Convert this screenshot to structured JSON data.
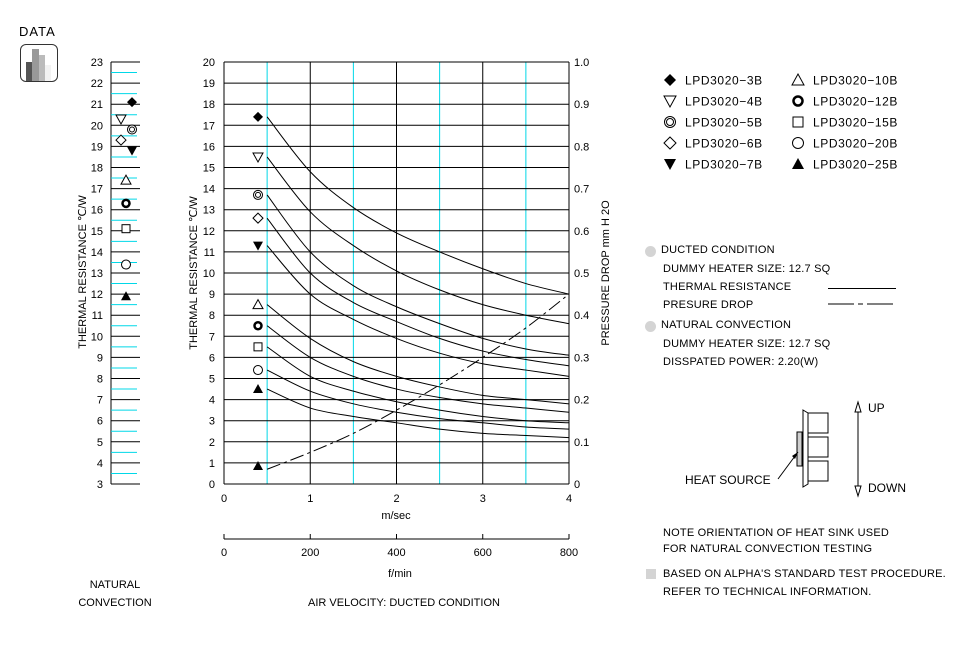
{
  "header": {
    "data_label": "DATA"
  },
  "natural_convection_scale": {
    "ylabel": "THERMAL  RESISTANCE   ℃/W",
    "ticks": [
      3,
      4,
      5,
      6,
      7,
      8,
      9,
      10,
      11,
      12,
      13,
      14,
      15,
      16,
      17,
      18,
      19,
      20,
      21,
      22,
      23
    ],
    "caption_line1": "NATURAL",
    "caption_line2": "CONVECTION"
  },
  "main_chart": {
    "ylabel": "THERMAL  RESISTANCE   ℃/W",
    "y2label": "PRESSURE  DROP    mm H 2O",
    "xlabel": "m/sec",
    "x2label": "f/min",
    "caption": "AIR VELOCITY:  DUCTED CONDITION"
  },
  "legend": {
    "items": [
      {
        "label": "LPD3020−3B",
        "marker": "filled-diamond"
      },
      {
        "label": "LPD3020−4B",
        "marker": "open-down-triangle"
      },
      {
        "label": "LPD3020−5B",
        "marker": "double-circle"
      },
      {
        "label": "LPD3020−6B",
        "marker": "open-diamond"
      },
      {
        "label": "LPD3020−7B",
        "marker": "filled-down-triangle"
      },
      {
        "label": "LPD3020−10B",
        "marker": "open-up-triangle"
      },
      {
        "label": "LPD3020−12B",
        "marker": "bold-ring"
      },
      {
        "label": "LPD3020−15B",
        "marker": "open-square"
      },
      {
        "label": "LPD3020−20B",
        "marker": "open-circle"
      },
      {
        "label": "LPD3020−25B",
        "marker": "filled-up-triangle"
      }
    ]
  },
  "conditions": {
    "ducted_title": "DUCTED CONDITION",
    "ducted_heater": "DUMMY HEATER SIZE: 12.7 SQ",
    "thermal_resistance": "THERMAL RESISTANCE",
    "pressure_drop": "PRESURE DROP",
    "natural_title": "NATURAL CONVECTION",
    "natural_heater": "DUMMY HEATER SIZE: 12.7 SQ",
    "dissipated_power": "DISSPATED POWER:    2.20(W)"
  },
  "orientation": {
    "heat_source": "HEAT SOURCE",
    "up": "UP",
    "down": "DOWN",
    "note_line1": "NOTE ORIENTATION OF HEAT SINK USED",
    "note_line2": "FOR NATURAL CONVECTION TESTING",
    "ref_line1": "BASED ON ALPHA'S STANDARD TEST PROCEDURE.",
    "ref_line2": "REFER TO TECHNICAL INFORMATION."
  },
  "chart_data": [
    {
      "type": "line",
      "title": "Thermal Resistance & Pressure Drop vs Air Velocity (Ducted Condition)",
      "xlabel": "m/sec",
      "x2label": "f/min",
      "ylabel": "THERMAL RESISTANCE ℃/W",
      "y2label": "PRESSURE DROP mm H2O",
      "xlim": [
        0,
        4
      ],
      "x2lim": [
        0,
        800
      ],
      "ylim": [
        0,
        20
      ],
      "y2lim": [
        0,
        1.0
      ],
      "xticks": [
        0,
        1,
        2,
        3,
        4
      ],
      "x2ticks": [
        0,
        200,
        400,
        600,
        800
      ],
      "yticks": [
        0,
        1,
        2,
        3,
        4,
        5,
        6,
        7,
        8,
        9,
        10,
        11,
        12,
        13,
        14,
        15,
        16,
        17,
        18,
        19,
        20
      ],
      "y2ticks": [
        0,
        0.1,
        0.2,
        0.3,
        0.4,
        0.5,
        0.6,
        0.7,
        0.8,
        0.9,
        1.0
      ],
      "grid": true,
      "legend_position": "right",
      "x": [
        0.5,
        1.0,
        1.5,
        2.0,
        2.5,
        3.0,
        3.5,
        4.0
      ],
      "series": [
        {
          "name": "LPD3020-3B",
          "values": [
            17.4,
            14.8,
            13.1,
            11.9,
            11.0,
            10.2,
            9.5,
            9.0
          ]
        },
        {
          "name": "LPD3020-4B",
          "values": [
            15.5,
            12.9,
            11.3,
            10.1,
            9.2,
            8.5,
            8.0,
            7.6
          ]
        },
        {
          "name": "LPD3020-5B",
          "values": [
            13.7,
            11.0,
            9.4,
            8.4,
            7.6,
            6.9,
            6.4,
            6.1
          ]
        },
        {
          "name": "LPD3020-6B",
          "values": [
            12.6,
            10.0,
            8.6,
            7.7,
            6.9,
            6.3,
            5.9,
            5.6
          ]
        },
        {
          "name": "LPD3020-7B",
          "values": [
            11.3,
            9.0,
            7.8,
            6.9,
            6.2,
            5.7,
            5.4,
            5.1
          ]
        },
        {
          "name": "LPD3020-10B",
          "values": [
            8.5,
            6.9,
            5.8,
            5.1,
            4.6,
            4.2,
            4.0,
            3.8
          ]
        },
        {
          "name": "LPD3020-12B",
          "values": [
            7.5,
            6.0,
            5.1,
            4.5,
            4.1,
            3.8,
            3.6,
            3.4
          ]
        },
        {
          "name": "LPD3020-15B",
          "values": [
            6.5,
            5.1,
            4.4,
            3.9,
            3.5,
            3.2,
            3.0,
            2.9
          ]
        },
        {
          "name": "LPD3020-20B",
          "values": [
            5.4,
            4.4,
            3.8,
            3.4,
            3.1,
            2.9,
            2.7,
            2.6
          ]
        },
        {
          "name": "LPD3020-25B",
          "values": [
            4.5,
            3.6,
            3.2,
            2.9,
            2.6,
            2.4,
            2.3,
            2.2
          ]
        },
        {
          "name": "Pressure Drop (mm H2O)",
          "axis": "y2",
          "style": "dashed",
          "values": [
            0.035,
            0.075,
            0.12,
            0.175,
            0.235,
            0.3,
            0.37,
            0.45
          ]
        }
      ]
    },
    {
      "type": "scatter",
      "title": "Natural Convection Thermal Resistance",
      "ylabel": "THERMAL RESISTANCE ℃/W",
      "ylim": [
        3,
        23
      ],
      "categories": [
        "LPD3020-3B",
        "LPD3020-4B",
        "LPD3020-5B",
        "LPD3020-6B",
        "LPD3020-7B",
        "LPD3020-10B",
        "LPD3020-12B",
        "LPD3020-15B",
        "LPD3020-20B",
        "LPD3020-25B"
      ],
      "values": [
        21.1,
        20.3,
        19.8,
        19.3,
        18.8,
        17.4,
        16.3,
        15.1,
        13.4,
        11.9
      ]
    }
  ]
}
